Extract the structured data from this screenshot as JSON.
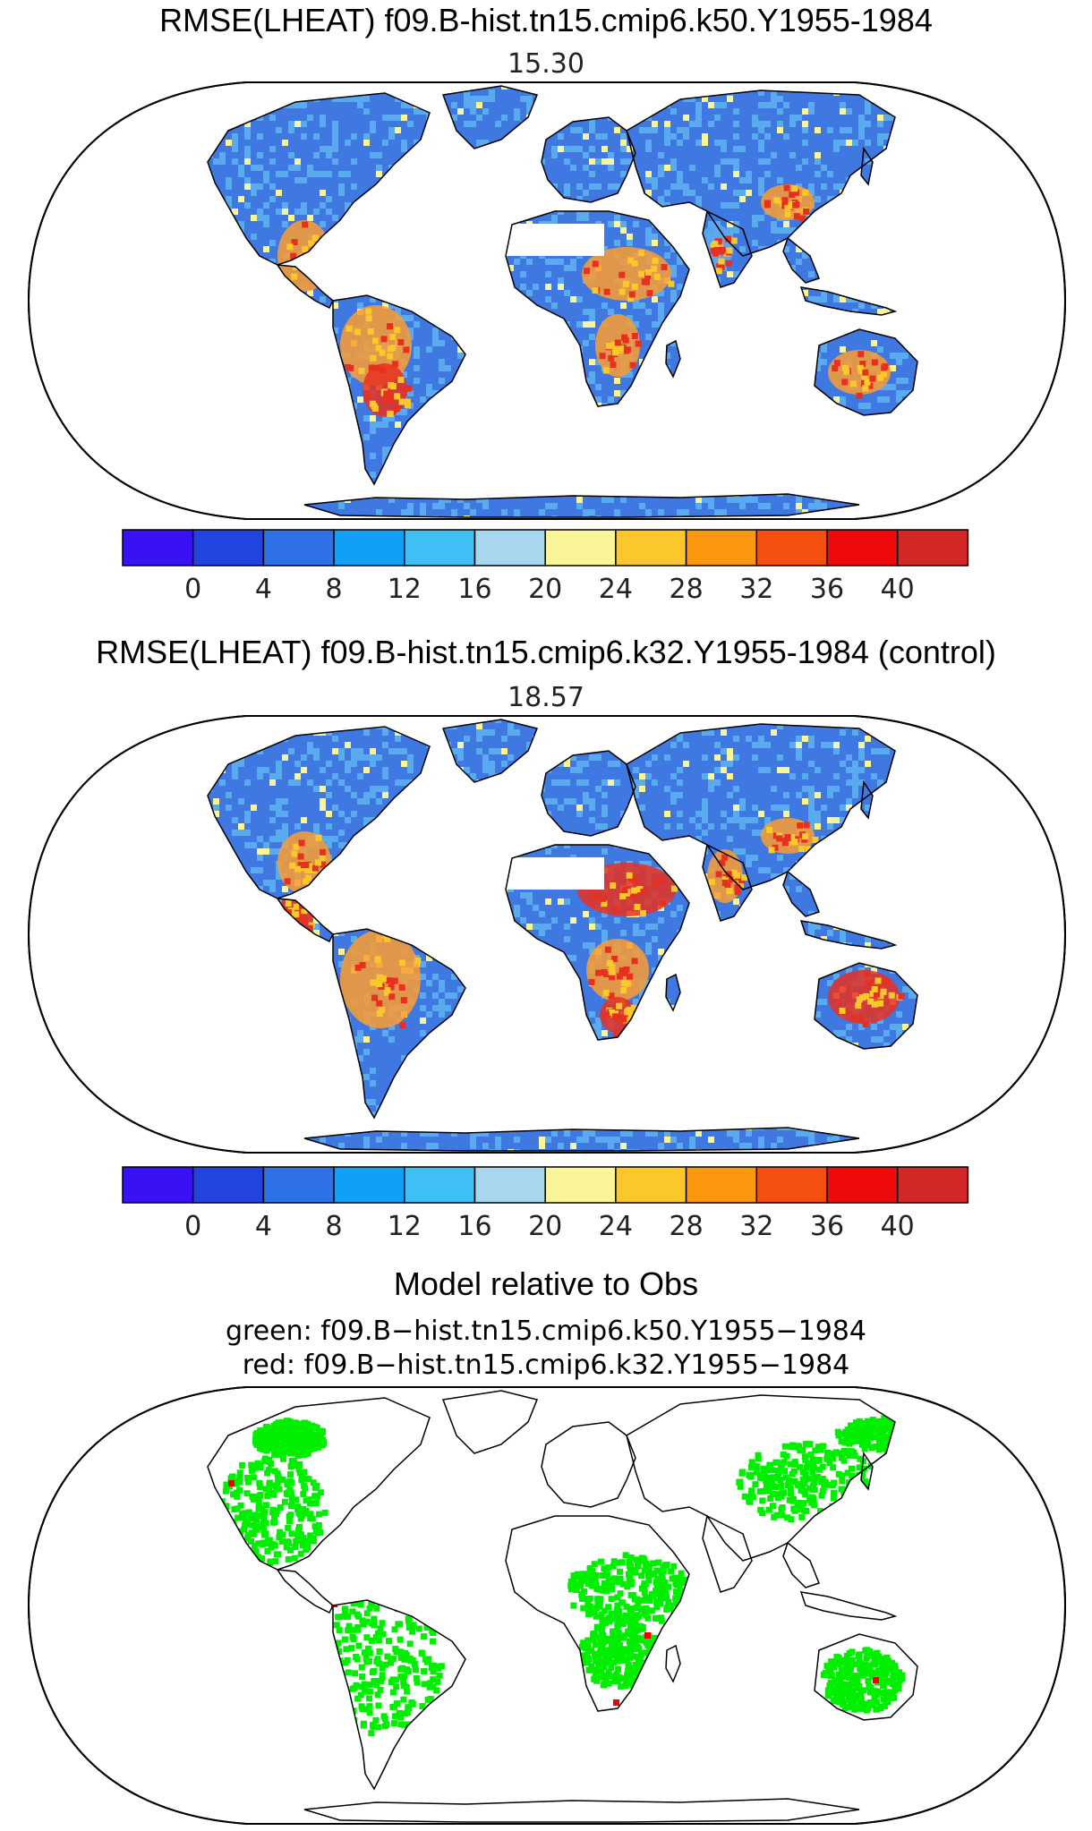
{
  "panel1": {
    "title": "RMSE(LHEAT) f09.B-hist.tn15.cmip6.k50.Y1955-1984",
    "value": "15.30"
  },
  "panel2": {
    "title": "RMSE(LHEAT) f09.B-hist.tn15.cmip6.k32.Y1955-1984 (control)",
    "value": "18.57"
  },
  "panel3": {
    "title": "Model relative to Obs",
    "green_label": "green: f09.B−hist.tn15.cmip6.k50.Y1955−1984",
    "red_label": "red: f09.B−hist.tn15.cmip6.k32.Y1955−1984",
    "colors": {
      "better_model": "#00ee00",
      "control": "#ee0000"
    }
  },
  "colorbar": {
    "colors": [
      "#3a10f5",
      "#2444e0",
      "#2f72e8",
      "#12a0f7",
      "#3fc0f5",
      "#a8d8f0",
      "#fbf59a",
      "#fcc72a",
      "#fc9810",
      "#f55010",
      "#ee0a0a",
      "#d42828"
    ],
    "tick_labels": [
      "0",
      "4",
      "8",
      "12",
      "16",
      "20",
      "24",
      "28",
      "32",
      "36",
      "40"
    ]
  },
  "map_colors": {
    "low": "#3f78e0",
    "mid": "#5aaaf0",
    "high": "#fc9c30",
    "peak": "#e83020",
    "coast": "#000000"
  }
}
